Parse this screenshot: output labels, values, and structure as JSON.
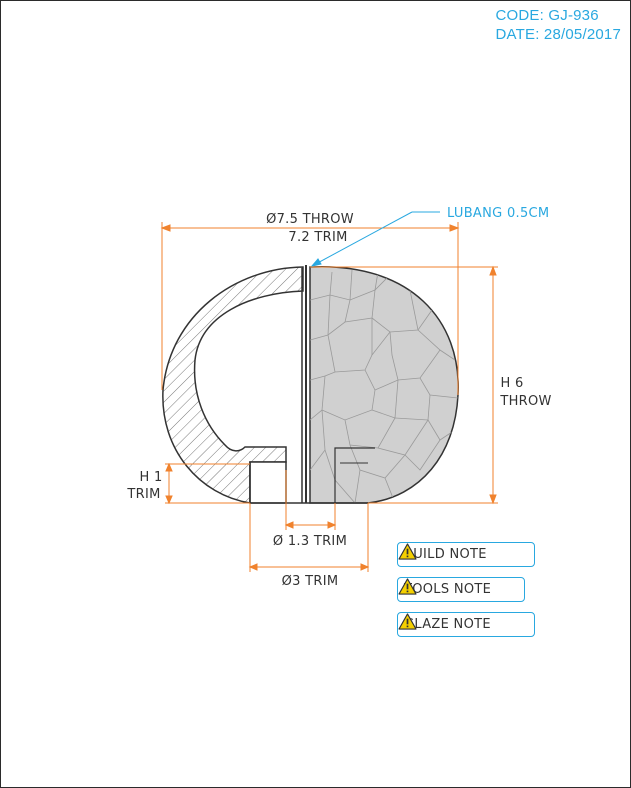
{
  "meta": {
    "code": "CODE: GJ-936",
    "date": "DATE: 28/05/2017"
  },
  "dimensions": {
    "top_throw": "Ø7.5 THROW",
    "top_trim": "7.2 TRIM",
    "lubang": "LUBANG 0.5CM",
    "height_h": "H 6",
    "height_throw": "THROW",
    "foot_h": "H 1",
    "foot_trim": "TRIM",
    "inner_trim": "Ø 1.3 TRIM",
    "outer_trim": "Ø3 TRIM"
  },
  "notes": [
    {
      "label": "BUILD NOTE",
      "icon": "warning-icon"
    },
    {
      "label": "TOOLS NOTE",
      "icon": "warning-icon"
    },
    {
      "label": "GLAZE NOTE",
      "icon": "warning-icon"
    }
  ],
  "colors": {
    "dimension": "#f0822d",
    "callout": "#29a8e0",
    "outline": "#333333",
    "glaze_fill": "#d0d0d0"
  }
}
